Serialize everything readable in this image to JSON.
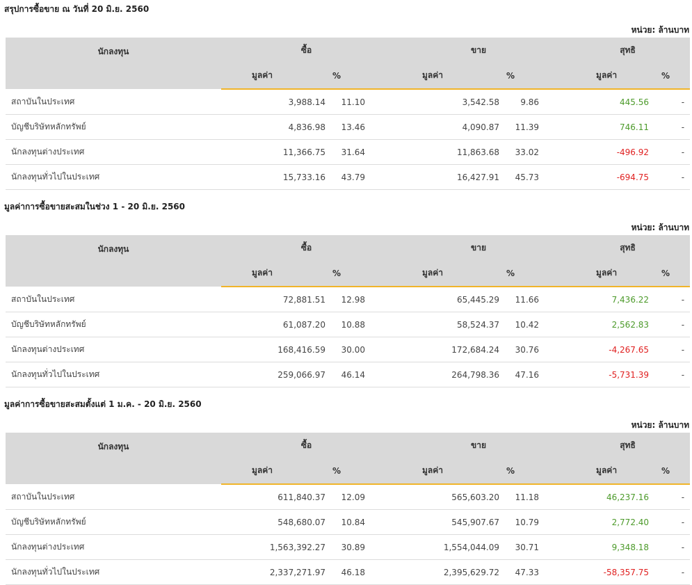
{
  "headers": {
    "investor": "นักลงทุน",
    "buy": "ซื้อ",
    "sell": "ขาย",
    "net": "สุทธิ",
    "value": "มูลค่า",
    "pct": "%"
  },
  "unit_label": "หน่วย: ล้านบาท",
  "sections": [
    {
      "title": "สรุปการซื้อขาย ณ วันที่ 20 มิ.ย. 2560",
      "rows": [
        {
          "name": "สถาบันในประเทศ",
          "buy_value": "3,988.14",
          "buy_pct": "11.10",
          "sell_value": "3,542.58",
          "sell_pct": "9.86",
          "net_value": "445.56",
          "net_pct": "-",
          "net_sign": "pos"
        },
        {
          "name": "บัญชีบริษัทหลักทรัพย์",
          "buy_value": "4,836.98",
          "buy_pct": "13.46",
          "sell_value": "4,090.87",
          "sell_pct": "11.39",
          "net_value": "746.11",
          "net_pct": "-",
          "net_sign": "pos"
        },
        {
          "name": "นักลงทุนต่างประเทศ",
          "buy_value": "11,366.75",
          "buy_pct": "31.64",
          "sell_value": "11,863.68",
          "sell_pct": "33.02",
          "net_value": "-496.92",
          "net_pct": "-",
          "net_sign": "neg"
        },
        {
          "name": "นักลงทุนทั่วไปในประเทศ",
          "buy_value": "15,733.16",
          "buy_pct": "43.79",
          "sell_value": "16,427.91",
          "sell_pct": "45.73",
          "net_value": "-694.75",
          "net_pct": "-",
          "net_sign": "neg"
        }
      ]
    },
    {
      "title": "มูลค่าการซื้อขายสะสมในช่วง 1 - 20 มิ.ย. 2560",
      "rows": [
        {
          "name": "สถาบันในประเทศ",
          "buy_value": "72,881.51",
          "buy_pct": "12.98",
          "sell_value": "65,445.29",
          "sell_pct": "11.66",
          "net_value": "7,436.22",
          "net_pct": "-",
          "net_sign": "pos"
        },
        {
          "name": "บัญชีบริษัทหลักทรัพย์",
          "buy_value": "61,087.20",
          "buy_pct": "10.88",
          "sell_value": "58,524.37",
          "sell_pct": "10.42",
          "net_value": "2,562.83",
          "net_pct": "-",
          "net_sign": "pos"
        },
        {
          "name": "นักลงทุนต่างประเทศ",
          "buy_value": "168,416.59",
          "buy_pct": "30.00",
          "sell_value": "172,684.24",
          "sell_pct": "30.76",
          "net_value": "-4,267.65",
          "net_pct": "-",
          "net_sign": "neg"
        },
        {
          "name": "นักลงทุนทั่วไปในประเทศ",
          "buy_value": "259,066.97",
          "buy_pct": "46.14",
          "sell_value": "264,798.36",
          "sell_pct": "47.16",
          "net_value": "-5,731.39",
          "net_pct": "-",
          "net_sign": "neg"
        }
      ]
    },
    {
      "title": "มูลค่าการซื้อขายสะสมตั้งแต่ 1 ม.ค. - 20 มิ.ย. 2560",
      "rows": [
        {
          "name": "สถาบันในประเทศ",
          "buy_value": "611,840.37",
          "buy_pct": "12.09",
          "sell_value": "565,603.20",
          "sell_pct": "11.18",
          "net_value": "46,237.16",
          "net_pct": "-",
          "net_sign": "pos"
        },
        {
          "name": "บัญชีบริษัทหลักทรัพย์",
          "buy_value": "548,680.07",
          "buy_pct": "10.84",
          "sell_value": "545,907.67",
          "sell_pct": "10.79",
          "net_value": "2,772.40",
          "net_pct": "-",
          "net_sign": "pos"
        },
        {
          "name": "นักลงทุนต่างประเทศ",
          "buy_value": "1,563,392.27",
          "buy_pct": "30.89",
          "sell_value": "1,554,044.09",
          "sell_pct": "30.71",
          "net_value": "9,348.18",
          "net_pct": "-",
          "net_sign": "pos"
        },
        {
          "name": "นักลงทุนทั่วไปในประเทศ",
          "buy_value": "2,337,271.97",
          "buy_pct": "46.18",
          "sell_value": "2,395,629.72",
          "sell_pct": "47.33",
          "net_value": "-58,357.75",
          "net_pct": "-",
          "net_sign": "neg"
        }
      ]
    }
  ],
  "colors": {
    "header_bg": "#d9d9d9",
    "accent_underline": "#f0b429",
    "positive": "#4c9a2a",
    "negative": "#e02020"
  }
}
